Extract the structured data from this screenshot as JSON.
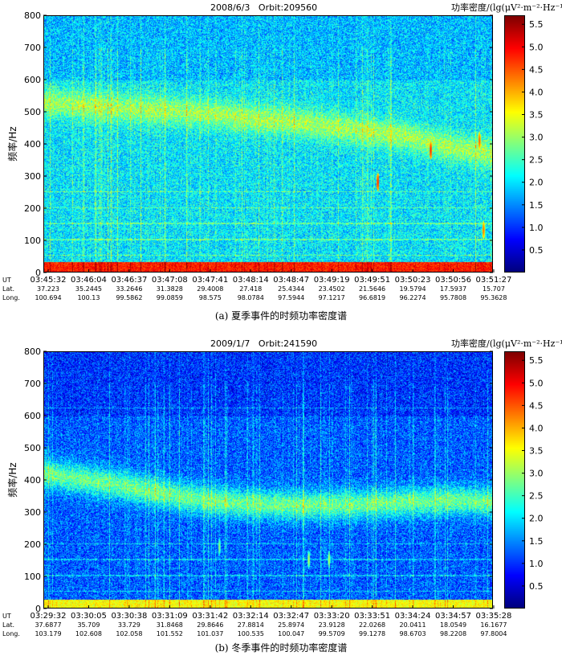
{
  "chart_data": [
    {
      "type": "heatmap",
      "panel_id": "a",
      "title_date": "2008/6/3",
      "title_orbit": "Orbit:209560",
      "ylabel": "频率/Hz",
      "ylim": [
        0,
        800
      ],
      "yticks": [
        0,
        100,
        200,
        300,
        400,
        500,
        600,
        700,
        800
      ],
      "row_labels": [
        "UT",
        "Lat.",
        "Long."
      ],
      "x": [
        "03:45:32",
        "03:46:04",
        "03:46:37",
        "03:47:08",
        "03:47:41",
        "03:48:14",
        "03:48:47",
        "03:49:19",
        "03:49:51",
        "03:50:23",
        "03:50:56",
        "03:51:27"
      ],
      "lat": [
        "37.223",
        "35.2445",
        "33.2646",
        "31.3828",
        "29.4008",
        "27.418",
        "25.4344",
        "23.4502",
        "21.5646",
        "19.5794",
        "17.5937",
        "15.707"
      ],
      "long": [
        "100.694",
        "100.13",
        "99.5862",
        "99.0859",
        "98.575",
        "98.0784",
        "97.5944",
        "97.1217",
        "96.6819",
        "96.2274",
        "95.7808",
        "95.3628"
      ],
      "colorbar": {
        "label": "功率密度/(lg(μV²·m⁻²·Hz⁻¹))",
        "ticks": [
          "0.5",
          "1.0",
          "1.5",
          "2.0",
          "2.5",
          "3.0",
          "3.5",
          "4.0",
          "4.5",
          "5.0",
          "5.5"
        ],
        "range": [
          0,
          5.7
        ]
      },
      "features": {
        "band_center_hz": [
          530,
          520,
          510,
          505,
          495,
          480,
          470,
          455,
          440,
          420,
          390,
          370
        ],
        "band_level": 3.0,
        "background_level": 2.0,
        "low_freq_strip_hz": [
          0,
          30
        ],
        "low_freq_level": 4.8,
        "harmonic_lines_hz": [
          50,
          100,
          150,
          200,
          250
        ],
        "hot_spots": [
          [
            8.2,
            280,
            4.8
          ],
          [
            9.5,
            380,
            4.8
          ],
          [
            10.7,
            410,
            4.5
          ],
          [
            10.8,
            130,
            4.4
          ]
        ]
      },
      "caption": "(a) 夏季事件的时频功率密度谱"
    },
    {
      "type": "heatmap",
      "panel_id": "b",
      "title_date": "2009/1/7",
      "title_orbit": "Orbit:241590",
      "ylabel": "频率/Hz",
      "ylim": [
        0,
        800
      ],
      "yticks": [
        0,
        100,
        200,
        300,
        400,
        500,
        600,
        700,
        800
      ],
      "row_labels": [
        "UT",
        "Lat.",
        "Long."
      ],
      "x": [
        "03:29:32",
        "03:30:05",
        "03:30:38",
        "03:31:09",
        "03:31:42",
        "03:32:14",
        "03:32:47",
        "03:33:20",
        "03:33:51",
        "03:34:24",
        "03:34:57",
        "03:35:28"
      ],
      "lat": [
        "37.6877",
        "35.709",
        "33.729",
        "31.8468",
        "29.8646",
        "27.8814",
        "25.8974",
        "23.9128",
        "22.0268",
        "20.0411",
        "18.0549",
        "16.1677"
      ],
      "long": [
        "103.179",
        "102.608",
        "102.058",
        "101.552",
        "101.037",
        "100.535",
        "100.047",
        "99.5709",
        "99.1278",
        "98.6703",
        "98.2208",
        "97.8004"
      ],
      "colorbar": {
        "label": "功率密度/(lg(μV²·m⁻²·Hz⁻¹))",
        "ticks": [
          "0.5",
          "1.0",
          "1.5",
          "2.0",
          "2.5",
          "3.0",
          "3.5",
          "4.0",
          "4.5",
          "5.0",
          "5.5"
        ],
        "range": [
          0,
          5.7
        ]
      },
      "features": {
        "band_center_hz": [
          420,
          400,
          380,
          355,
          335,
          325,
          320,
          320,
          325,
          330,
          335,
          330
        ],
        "band_level": 2.7,
        "background_level": 1.2,
        "low_freq_strip_hz": [
          0,
          25
        ],
        "low_freq_level": 3.5,
        "harmonic_lines_hz": [
          50,
          100,
          150,
          200,
          625
        ],
        "hot_spots": [
          [
            6.5,
            150,
            3.2
          ],
          [
            7.0,
            150,
            3.2
          ],
          [
            4.3,
            190,
            3.0
          ]
        ]
      },
      "caption": "(b) 冬季事件的时频功率密度谱"
    }
  ]
}
